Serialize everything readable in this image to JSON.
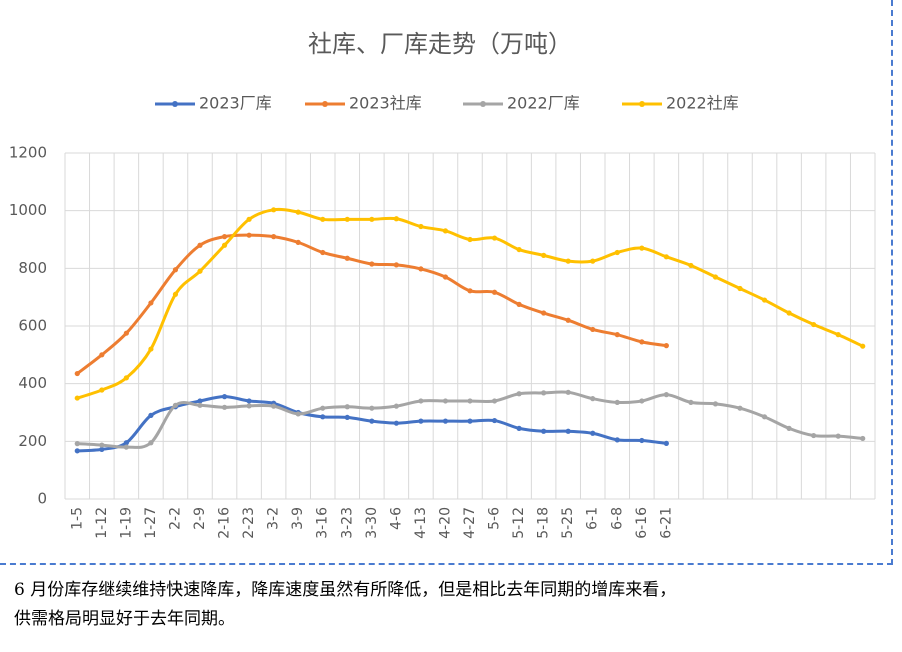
{
  "chart_data": {
    "type": "line",
    "title": "社库、厂库走势（万吨）",
    "categories": [
      "1-5",
      "1-12",
      "1-19",
      "1-27",
      "2-2",
      "2-9",
      "2-16",
      "2-23",
      "3-2",
      "3-9",
      "3-16",
      "3-23",
      "3-30",
      "4-6",
      "4-13",
      "4-20",
      "4-27",
      "5-6",
      "5-12",
      "5-18",
      "5-25",
      "6-1",
      "6-8",
      "6-16",
      "6-21",
      null,
      null,
      null,
      null,
      null,
      null,
      null,
      null
    ],
    "series": [
      {
        "name": "2023厂库",
        "color": "#4472c4",
        "values": [
          167,
          172,
          195,
          290,
          320,
          340,
          355,
          340,
          332,
          300,
          285,
          283,
          270,
          263,
          270,
          270,
          270,
          272,
          245,
          235,
          235,
          228,
          205,
          203,
          193,
          null,
          null,
          null,
          null,
          null,
          null,
          null,
          null
        ]
      },
      {
        "name": "2023社库",
        "color": "#ed7d31",
        "values": [
          435,
          500,
          575,
          680,
          795,
          880,
          910,
          915,
          910,
          890,
          855,
          835,
          815,
          812,
          798,
          770,
          722,
          717,
          675,
          645,
          620,
          588,
          570,
          545,
          532,
          null,
          null,
          null,
          null,
          null,
          null,
          null,
          null
        ]
      },
      {
        "name": "2022厂库",
        "color": "#a5a5a5",
        "values": [
          192,
          187,
          180,
          195,
          325,
          325,
          318,
          323,
          322,
          295,
          315,
          320,
          315,
          322,
          340,
          340,
          340,
          340,
          365,
          368,
          370,
          348,
          335,
          340,
          362,
          335,
          330,
          315,
          285,
          245,
          220,
          218,
          210
        ]
      },
      {
        "name": "2022社库",
        "color": "#ffc000",
        "values": [
          350,
          378,
          420,
          520,
          710,
          790,
          880,
          970,
          1003,
          995,
          970,
          970,
          970,
          972,
          945,
          930,
          900,
          905,
          865,
          845,
          825,
          825,
          855,
          870,
          840,
          810,
          770,
          730,
          690,
          645,
          605,
          570,
          530
        ]
      }
    ],
    "ylim": [
      0,
      1200
    ],
    "yticks": [
      0,
      200,
      400,
      600,
      800,
      1000,
      1200
    ],
    "grid": true,
    "legend": "top"
  },
  "caption": {
    "lines": [
      "6 月份库存继续维持快速降库，降库速度虽然有所降低，但是相比去年同期的增库来看，",
      "供需格局明显好于去年同期。"
    ]
  }
}
